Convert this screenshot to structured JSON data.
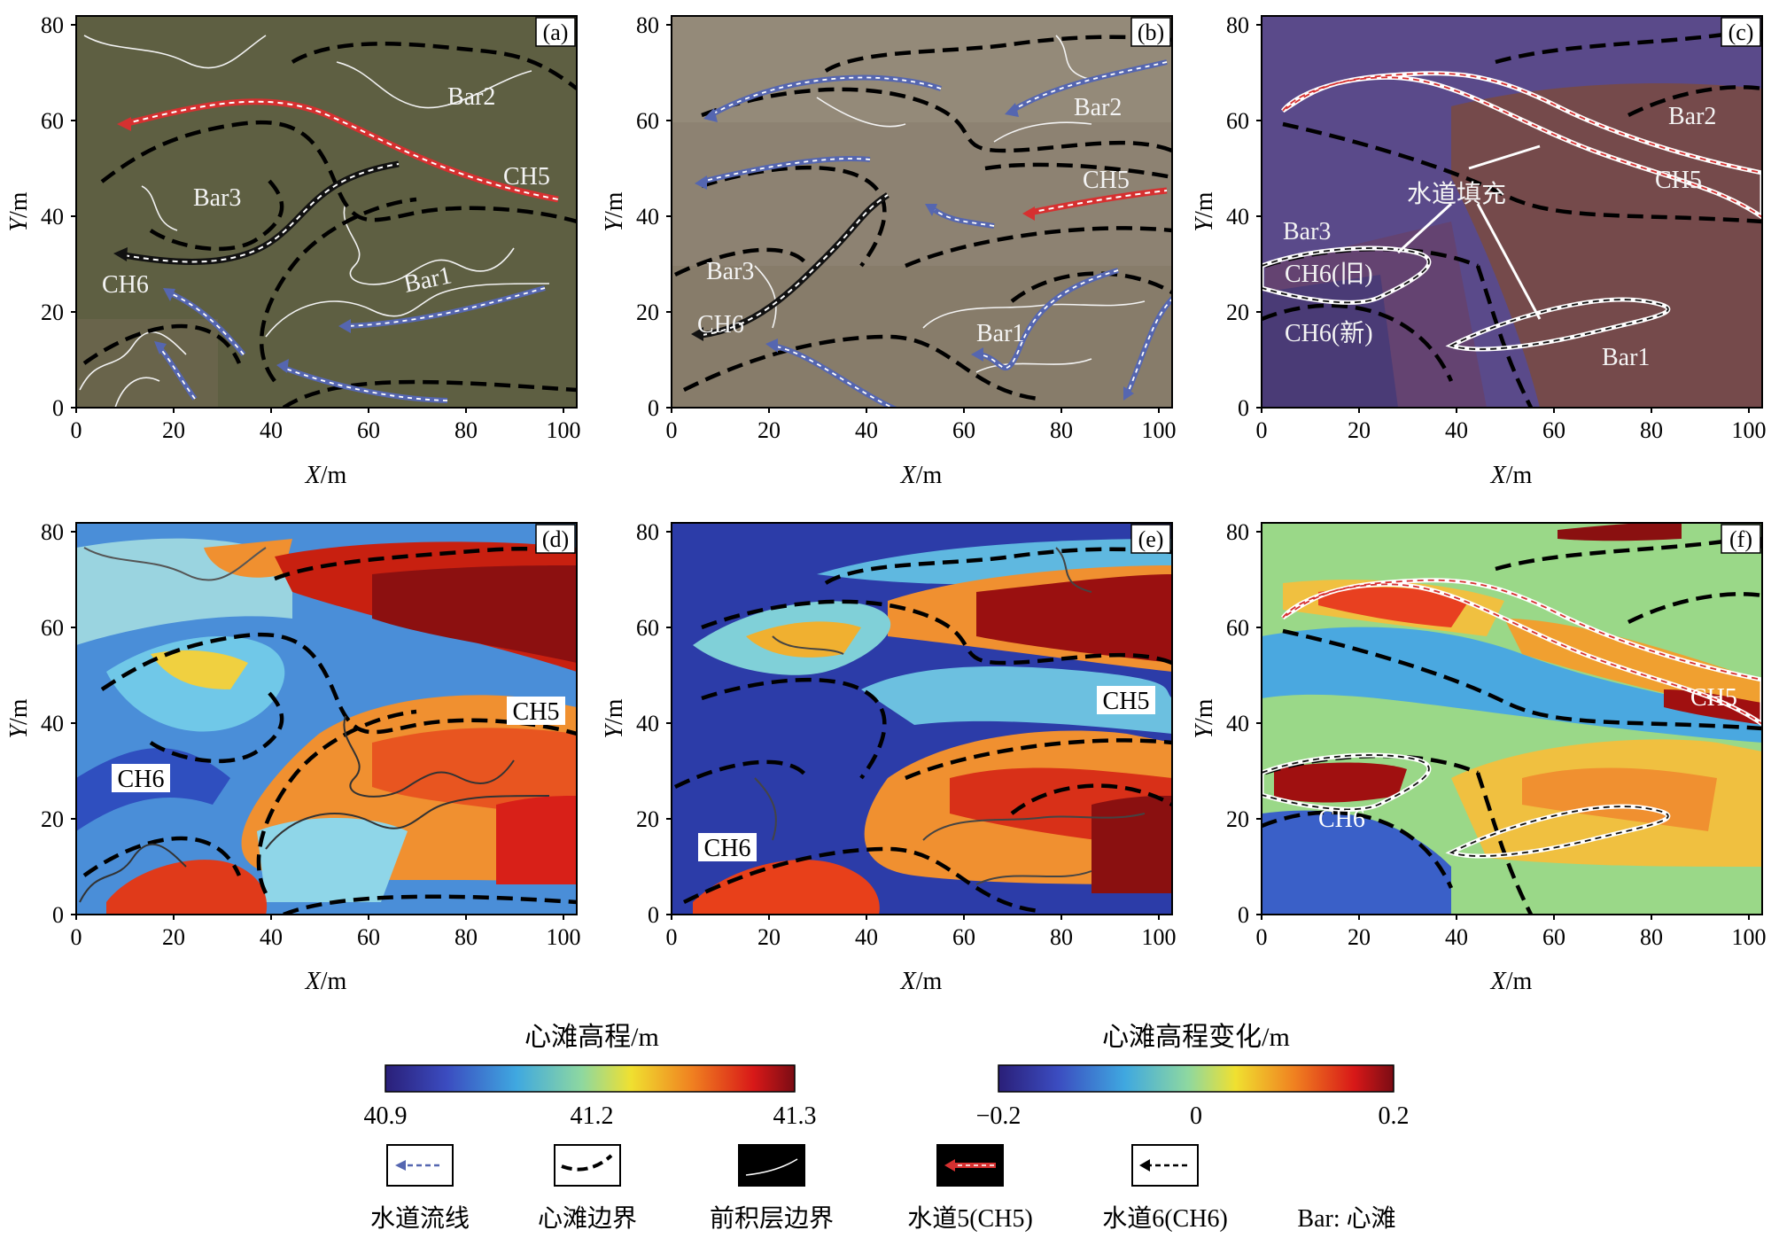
{
  "panels": [
    {
      "id": "a",
      "tag": "(a)",
      "labels": {
        "bar2": "Bar2",
        "bar3": "Bar3",
        "bar1": "Bar1",
        "ch5": "CH5",
        "ch6": "CH6"
      }
    },
    {
      "id": "b",
      "tag": "(b)",
      "labels": {
        "bar2": "Bar2",
        "ch5": "CH5",
        "bar3": "Bar3",
        "ch6": "CH6",
        "bar1": "Bar1"
      }
    },
    {
      "id": "c",
      "tag": "(c)",
      "labels": {
        "bar2": "Bar2",
        "ch5": "CH5",
        "fill": "水道填充",
        "bar3": "Bar3",
        "ch6old": "CH6(旧)",
        "ch6new": "CH6(新)",
        "bar1": "Bar1"
      }
    },
    {
      "id": "d",
      "tag": "(d)",
      "labels": {
        "ch5": "CH5",
        "ch6": "CH6"
      }
    },
    {
      "id": "e",
      "tag": "(e)",
      "labels": {
        "ch5": "CH5",
        "ch6": "CH6"
      }
    },
    {
      "id": "f",
      "tag": "(f)",
      "labels": {
        "ch5": "CH5",
        "ch6": "CH6"
      }
    }
  ],
  "axes": {
    "x_label_italic": "X",
    "x_label_unit": "/m",
    "y_label_italic": "Y",
    "y_label_unit": "/m",
    "x_ticks": [
      "0",
      "20",
      "40",
      "60",
      "80",
      "100"
    ],
    "y_ticks": [
      "0",
      "20",
      "40",
      "60",
      "80"
    ]
  },
  "colorbars": {
    "elevation": {
      "title": "心滩高程/m",
      "ticks": [
        "40.9",
        "41.2",
        "41.3"
      ]
    },
    "change": {
      "title": "心滩高程变化/m",
      "ticks": [
        "−0.2",
        "0",
        "0.2"
      ]
    }
  },
  "legend": {
    "items": [
      "水道流线",
      "心滩边界",
      "前积层边界",
      "水道5(CH5)",
      "水道6(CH6)"
    ],
    "note": "Bar: 心滩"
  },
  "colors": {
    "photo_a": "#585a3e",
    "photo_b": "#8d8272",
    "photo_c": "#5a4a8a",
    "flowline": "#5566b0",
    "ch5": "#d63030",
    "bar_boundary": "#000000"
  }
}
